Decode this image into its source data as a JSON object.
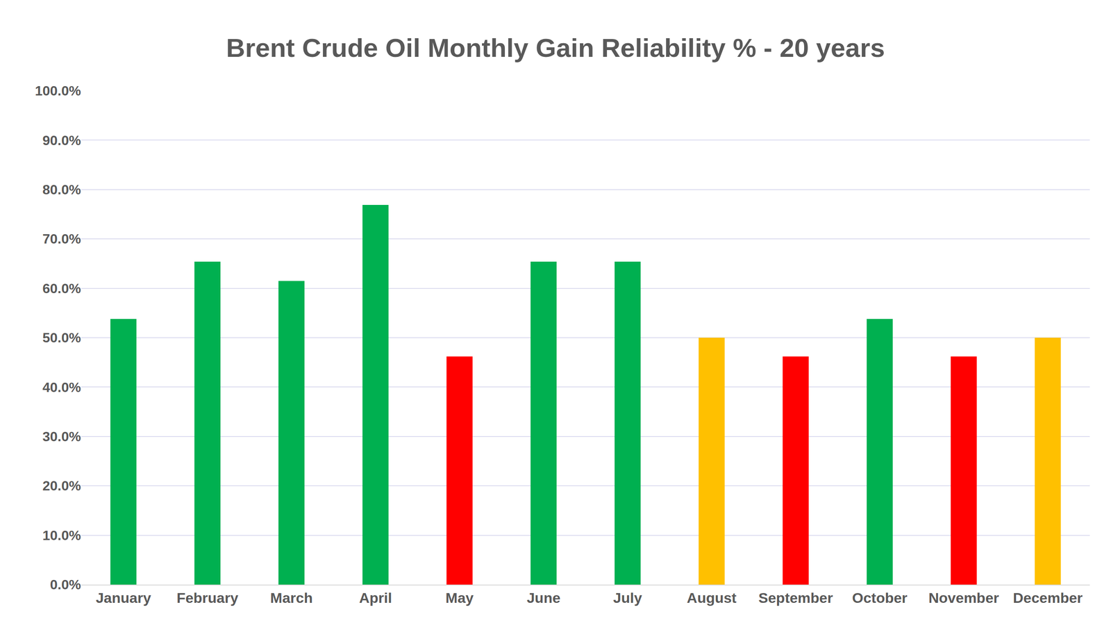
{
  "chart_data": {
    "type": "bar",
    "title": "Brent Crude Oil Monthly Gain Reliability % - 20 years",
    "categories": [
      "January",
      "February",
      "March",
      "April",
      "May",
      "June",
      "July",
      "August",
      "September",
      "October",
      "November",
      "December"
    ],
    "values": [
      53.8,
      65.4,
      61.5,
      76.9,
      46.2,
      65.4,
      65.4,
      50.0,
      46.2,
      53.8,
      46.2,
      50.0
    ],
    "colors": [
      "#00b050",
      "#00b050",
      "#00b050",
      "#00b050",
      "#ff0000",
      "#00b050",
      "#00b050",
      "#ffc000",
      "#ff0000",
      "#00b050",
      "#ff0000",
      "#ffc000"
    ],
    "ylim": [
      0,
      100
    ],
    "yticks": [
      {
        "value": 0,
        "label": "0.0%"
      },
      {
        "value": 10,
        "label": "10.0%"
      },
      {
        "value": 20,
        "label": "20.0%"
      },
      {
        "value": 30,
        "label": "30.0%"
      },
      {
        "value": 40,
        "label": "40.0%"
      },
      {
        "value": 50,
        "label": "50.0%"
      },
      {
        "value": 60,
        "label": "60.0%"
      },
      {
        "value": 70,
        "label": "70.0%"
      },
      {
        "value": 80,
        "label": "80.0%"
      },
      {
        "value": 90,
        "label": "90.0%"
      },
      {
        "value": 100,
        "label": "100.0%"
      }
    ],
    "grid": true
  }
}
